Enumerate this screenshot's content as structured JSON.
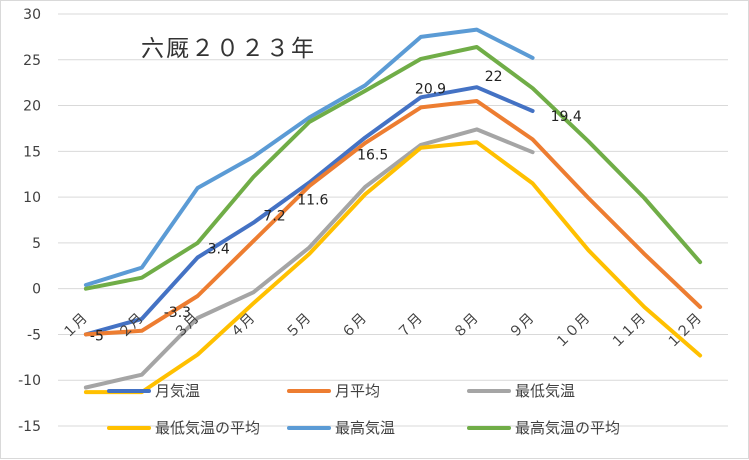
{
  "chart_data": {
    "type": "line",
    "title": "六厩２０２３年",
    "categories": [
      "１月",
      "２月",
      "３月",
      "４月",
      "５月",
      "６月",
      "７月",
      "８月",
      "９月",
      "１０月",
      "１１月",
      "１２月"
    ],
    "ylim": [
      -15,
      30
    ],
    "yticks": [
      -15,
      -10,
      -5,
      0,
      5,
      10,
      15,
      20,
      25,
      30
    ],
    "grid": true,
    "legend_position": "bottom",
    "series": [
      {
        "name": "月気温",
        "color": "#4472c4",
        "values": [
          -5.0,
          -3.3,
          3.4,
          7.2,
          11.6,
          16.5,
          20.9,
          22.0,
          19.4,
          null,
          null,
          null
        ],
        "labels": [
          "-5",
          "-3.3",
          "3.4",
          "7.2",
          "11.6",
          "16.5",
          "20.9",
          "22",
          "19.4",
          null,
          null,
          null
        ]
      },
      {
        "name": "月平均",
        "color": "#ed7d31",
        "values": [
          -5.0,
          -4.6,
          -0.8,
          5.2,
          11.2,
          15.9,
          19.8,
          20.5,
          16.3,
          9.9,
          3.8,
          -2.0
        ]
      },
      {
        "name": "最低気温",
        "color": "#a5a5a5",
        "values": [
          -10.8,
          -9.4,
          -3.2,
          -0.4,
          4.5,
          11.1,
          15.7,
          17.4,
          14.9,
          null,
          null,
          null
        ]
      },
      {
        "name": "最低気温の平均",
        "color": "#ffc000",
        "values": [
          -11.3,
          -11.3,
          -7.2,
          -1.6,
          3.8,
          10.3,
          15.4,
          16.0,
          11.5,
          4.2,
          -2.0,
          -7.3
        ]
      },
      {
        "name": "最高気温",
        "color": "#5b9bd5",
        "values": [
          0.4,
          2.3,
          11.0,
          14.4,
          18.7,
          22.2,
          27.5,
          28.3,
          25.2,
          null,
          null,
          null
        ]
      },
      {
        "name": "最高気温の平均",
        "color": "#70ad47",
        "values": [
          0.0,
          1.2,
          5.0,
          12.2,
          18.2,
          21.6,
          25.1,
          26.4,
          21.9,
          16.1,
          9.9,
          2.9
        ]
      }
    ]
  }
}
